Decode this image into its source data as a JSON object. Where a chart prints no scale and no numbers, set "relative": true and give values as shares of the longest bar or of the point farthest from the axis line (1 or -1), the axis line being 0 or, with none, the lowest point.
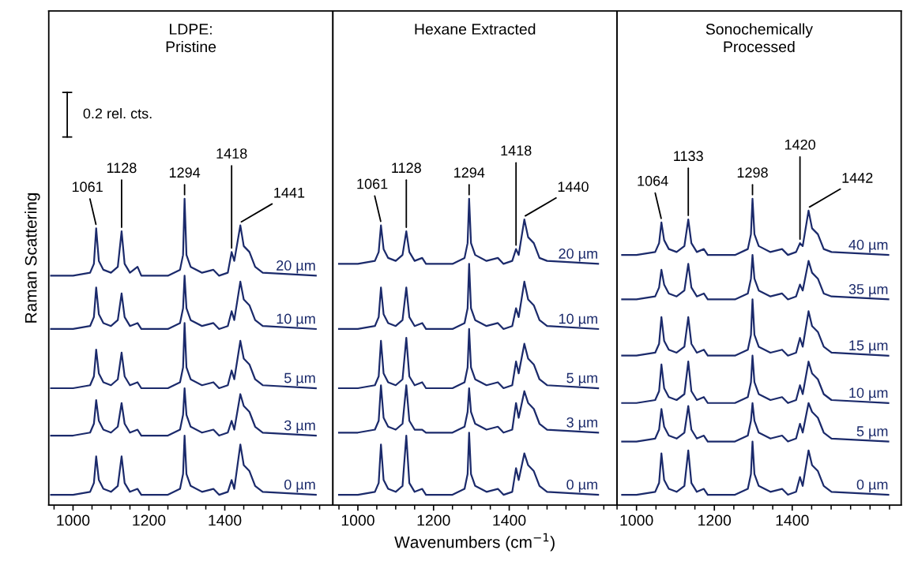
{
  "chart_data": [
    {
      "type": "line",
      "title": "LDPE:\nPristine",
      "ylabel": "Raman Scattering",
      "relative": true,
      "legend": false,
      "grid": false,
      "xlim": [
        936,
        1685
      ],
      "xticks": [
        1000,
        1200,
        1400
      ],
      "x": [
        942,
        1000,
        1045,
        1055,
        1061,
        1068,
        1080,
        1100,
        1118,
        1128,
        1136,
        1150,
        1170,
        1180,
        1250,
        1282,
        1290,
        1294,
        1299,
        1310,
        1340,
        1370,
        1385,
        1408,
        1418,
        1425,
        1441,
        1450,
        1465,
        1480,
        1500,
        1640
      ],
      "annotations": [
        "0.2 rel. cts.",
        {
          "text": "1061",
          "x": 1061,
          "y": 0.9
        },
        {
          "text": "1128",
          "x": 1128,
          "y": 0.89
        },
        {
          "text": "1294",
          "x": 1294,
          "y": 1.0
        },
        {
          "text": "1418",
          "x": 1418,
          "y": 0.82
        },
        {
          "text": "1441",
          "x": 1441,
          "y": 0.91
        }
      ],
      "series": [
        {
          "name": "20 µm",
          "color": "#1b2a6b",
          "values": [
            0.74,
            0.74,
            0.75,
            0.78,
            0.9,
            0.79,
            0.76,
            0.75,
            0.77,
            0.89,
            0.78,
            0.75,
            0.77,
            0.74,
            0.74,
            0.76,
            0.81,
            1.0,
            0.81,
            0.77,
            0.75,
            0.76,
            0.74,
            0.75,
            0.82,
            0.79,
            0.91,
            0.84,
            0.82,
            0.77,
            0.75,
            0.74
          ]
        },
        {
          "name": "10 µm",
          "color": "#1b2a6b",
          "values": [
            0.56,
            0.56,
            0.57,
            0.6,
            0.7,
            0.61,
            0.58,
            0.57,
            0.59,
            0.68,
            0.6,
            0.57,
            0.58,
            0.56,
            0.56,
            0.58,
            0.63,
            0.74,
            0.63,
            0.59,
            0.57,
            0.58,
            0.56,
            0.57,
            0.62,
            0.59,
            0.72,
            0.66,
            0.64,
            0.59,
            0.57,
            0.56
          ]
        },
        {
          "name": "5 µm",
          "color": "#1b2a6b",
          "values": [
            0.36,
            0.36,
            0.37,
            0.4,
            0.49,
            0.41,
            0.38,
            0.37,
            0.39,
            0.48,
            0.4,
            0.37,
            0.38,
            0.36,
            0.36,
            0.38,
            0.43,
            0.58,
            0.43,
            0.39,
            0.37,
            0.38,
            0.36,
            0.37,
            0.42,
            0.39,
            0.52,
            0.46,
            0.44,
            0.39,
            0.37,
            0.36
          ]
        },
        {
          "name": "3 µm",
          "color": "#1b2a6b",
          "values": [
            0.2,
            0.2,
            0.21,
            0.24,
            0.32,
            0.25,
            0.22,
            0.21,
            0.23,
            0.31,
            0.24,
            0.21,
            0.22,
            0.2,
            0.2,
            0.22,
            0.27,
            0.36,
            0.27,
            0.23,
            0.21,
            0.22,
            0.2,
            0.21,
            0.25,
            0.22,
            0.34,
            0.3,
            0.28,
            0.23,
            0.21,
            0.2
          ]
        },
        {
          "name": "0 µm",
          "color": "#1b2a6b",
          "values": [
            0.0,
            0.0,
            0.01,
            0.04,
            0.13,
            0.05,
            0.02,
            0.01,
            0.03,
            0.13,
            0.04,
            0.01,
            0.02,
            0.0,
            0.0,
            0.02,
            0.07,
            0.2,
            0.07,
            0.03,
            0.01,
            0.02,
            0.0,
            0.01,
            0.05,
            0.02,
            0.17,
            0.1,
            0.08,
            0.03,
            0.01,
            0.0
          ]
        }
      ]
    },
    {
      "type": "line",
      "title": "Hexane Extracted",
      "xlabel": "Wavenumbers (cm$^{−1}$)",
      "relative": true,
      "legend": false,
      "grid": false,
      "xlim": [
        934,
        1685
      ],
      "xticks": [
        1000,
        1200,
        1400
      ],
      "x": [
        950,
        1000,
        1045,
        1055,
        1061,
        1068,
        1080,
        1100,
        1118,
        1128,
        1136,
        1150,
        1170,
        1180,
        1250,
        1282,
        1290,
        1294,
        1299,
        1310,
        1340,
        1370,
        1385,
        1408,
        1418,
        1425,
        1440,
        1450,
        1465,
        1480,
        1500,
        1635
      ],
      "annotations": [
        {
          "text": "1061",
          "x": 1061,
          "y": 0.91
        },
        {
          "text": "1128",
          "x": 1128,
          "y": 0.89
        },
        {
          "text": "1294",
          "x": 1294,
          "y": 1.0
        },
        {
          "text": "1418",
          "x": 1418,
          "y": 0.83
        },
        {
          "text": "1440",
          "x": 1440,
          "y": 0.93
        }
      ],
      "series": [
        {
          "name": "20 µm",
          "color": "#1b2a6b",
          "values": [
            0.78,
            0.78,
            0.79,
            0.82,
            0.91,
            0.83,
            0.8,
            0.79,
            0.81,
            0.89,
            0.82,
            0.79,
            0.8,
            0.78,
            0.78,
            0.8,
            0.85,
            1.0,
            0.85,
            0.81,
            0.79,
            0.8,
            0.78,
            0.79,
            0.83,
            0.81,
            0.93,
            0.87,
            0.85,
            0.8,
            0.79,
            0.78
          ]
        },
        {
          "name": "10 µm",
          "color": "#1b2a6b",
          "values": [
            0.56,
            0.56,
            0.57,
            0.6,
            0.7,
            0.61,
            0.58,
            0.57,
            0.59,
            0.7,
            0.6,
            0.57,
            0.58,
            0.56,
            0.56,
            0.58,
            0.63,
            0.78,
            0.63,
            0.59,
            0.57,
            0.58,
            0.56,
            0.57,
            0.63,
            0.6,
            0.72,
            0.66,
            0.64,
            0.59,
            0.57,
            0.56
          ]
        },
        {
          "name": "5 µm",
          "color": "#1b2a6b",
          "values": [
            0.36,
            0.36,
            0.37,
            0.4,
            0.52,
            0.41,
            0.38,
            0.37,
            0.39,
            0.53,
            0.4,
            0.37,
            0.38,
            0.36,
            0.36,
            0.38,
            0.43,
            0.56,
            0.43,
            0.39,
            0.37,
            0.38,
            0.36,
            0.37,
            0.45,
            0.41,
            0.51,
            0.46,
            0.44,
            0.39,
            0.37,
            0.36
          ]
        },
        {
          "name": "3 µm",
          "color": "#1b2a6b",
          "values": [
            0.21,
            0.21,
            0.22,
            0.25,
            0.37,
            0.26,
            0.23,
            0.22,
            0.24,
            0.37,
            0.25,
            0.22,
            0.22,
            0.21,
            0.21,
            0.23,
            0.28,
            0.36,
            0.28,
            0.24,
            0.22,
            0.23,
            0.21,
            0.22,
            0.31,
            0.26,
            0.35,
            0.31,
            0.29,
            0.24,
            0.22,
            0.21
          ]
        },
        {
          "name": "0 µm",
          "color": "#1b2a6b",
          "values": [
            0.0,
            0.0,
            0.01,
            0.04,
            0.17,
            0.05,
            0.02,
            0.01,
            0.03,
            0.2,
            0.04,
            0.01,
            0.02,
            0.0,
            0.0,
            0.02,
            0.07,
            0.21,
            0.07,
            0.03,
            0.01,
            0.02,
            0.0,
            0.01,
            0.09,
            0.05,
            0.14,
            0.1,
            0.08,
            0.03,
            0.01,
            0.0
          ]
        }
      ]
    },
    {
      "type": "line",
      "title": "Sonochemically\nProcessed",
      "relative": true,
      "legend": false,
      "grid": false,
      "xlim": [
        950,
        1680
      ],
      "xticks": [
        1000,
        1200,
        1400
      ],
      "x": [
        963,
        1000,
        1048,
        1058,
        1064,
        1071,
        1083,
        1103,
        1123,
        1133,
        1141,
        1155,
        1173,
        1183,
        1253,
        1286,
        1294,
        1298,
        1303,
        1314,
        1344,
        1374,
        1389,
        1410,
        1420,
        1427,
        1442,
        1451,
        1466,
        1481,
        1501,
        1647
      ],
      "annotations": [
        {
          "text": "1064",
          "x": 1064,
          "y": 0.92
        },
        {
          "text": "1133",
          "x": 1133,
          "y": 0.93
        },
        {
          "text": "1298",
          "x": 1298,
          "y": 1.0
        },
        {
          "text": "1420",
          "x": 1420,
          "y": 0.85
        },
        {
          "text": "1442",
          "x": 1442,
          "y": 0.96
        }
      ],
      "series": [
        {
          "name": "40 µm",
          "color": "#1b2a6b",
          "values": [
            0.81,
            0.81,
            0.82,
            0.85,
            0.92,
            0.86,
            0.83,
            0.82,
            0.84,
            0.93,
            0.85,
            0.82,
            0.83,
            0.81,
            0.81,
            0.83,
            0.88,
            1.0,
            0.88,
            0.84,
            0.82,
            0.83,
            0.81,
            0.82,
            0.85,
            0.84,
            0.96,
            0.9,
            0.88,
            0.83,
            0.82,
            0.81
          ]
        },
        {
          "name": "35 µm",
          "color": "#1b2a6b",
          "values": [
            0.66,
            0.66,
            0.67,
            0.7,
            0.76,
            0.71,
            0.68,
            0.67,
            0.69,
            0.78,
            0.7,
            0.67,
            0.68,
            0.66,
            0.66,
            0.68,
            0.73,
            0.81,
            0.73,
            0.69,
            0.67,
            0.68,
            0.66,
            0.67,
            0.71,
            0.69,
            0.79,
            0.75,
            0.73,
            0.68,
            0.67,
            0.66
          ]
        },
        {
          "name": "15 µm",
          "color": "#1b2a6b",
          "values": [
            0.47,
            0.47,
            0.48,
            0.51,
            0.6,
            0.52,
            0.49,
            0.48,
            0.5,
            0.6,
            0.51,
            0.48,
            0.49,
            0.47,
            0.47,
            0.49,
            0.54,
            0.66,
            0.54,
            0.5,
            0.48,
            0.49,
            0.47,
            0.48,
            0.53,
            0.5,
            0.62,
            0.57,
            0.55,
            0.5,
            0.48,
            0.47
          ]
        },
        {
          "name": "10 µm",
          "color": "#1b2a6b",
          "values": [
            0.31,
            0.31,
            0.32,
            0.35,
            0.44,
            0.36,
            0.33,
            0.32,
            0.34,
            0.45,
            0.35,
            0.32,
            0.33,
            0.31,
            0.31,
            0.33,
            0.38,
            0.47,
            0.38,
            0.34,
            0.32,
            0.33,
            0.31,
            0.32,
            0.37,
            0.34,
            0.45,
            0.41,
            0.39,
            0.34,
            0.32,
            0.31
          ]
        },
        {
          "name": "5 µm",
          "color": "#1b2a6b",
          "values": [
            0.18,
            0.18,
            0.19,
            0.22,
            0.29,
            0.23,
            0.2,
            0.19,
            0.21,
            0.3,
            0.22,
            0.19,
            0.2,
            0.18,
            0.18,
            0.2,
            0.25,
            0.31,
            0.25,
            0.21,
            0.19,
            0.2,
            0.18,
            0.19,
            0.24,
            0.21,
            0.31,
            0.28,
            0.26,
            0.21,
            0.19,
            0.18
          ]
        },
        {
          "name": "0 µm",
          "color": "#1b2a6b",
          "values": [
            0.0,
            0.0,
            0.01,
            0.04,
            0.14,
            0.05,
            0.02,
            0.01,
            0.03,
            0.15,
            0.04,
            0.01,
            0.02,
            0.0,
            0.0,
            0.02,
            0.07,
            0.18,
            0.07,
            0.03,
            0.01,
            0.02,
            0.0,
            0.01,
            0.06,
            0.03,
            0.15,
            0.1,
            0.08,
            0.03,
            0.01,
            0.0
          ]
        }
      ]
    }
  ]
}
